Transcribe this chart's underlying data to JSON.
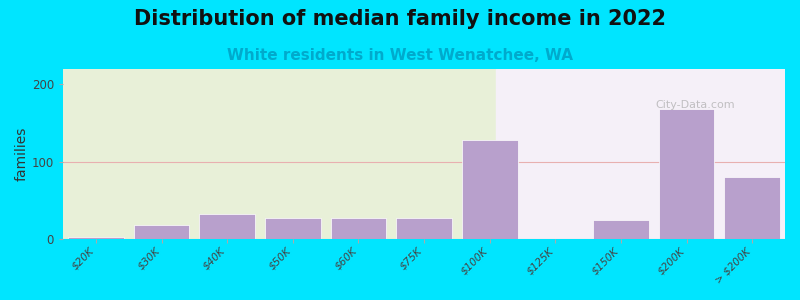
{
  "title": "Distribution of median family income in 2022",
  "subtitle": "White residents in West Wenatchee, WA",
  "ylabel": "families",
  "categories": [
    "$20K",
    "$30K",
    "$40K",
    "$50K",
    "$60K",
    "$75K",
    "$100K",
    "$125K",
    "$150K",
    "$200K",
    "> $200K"
  ],
  "values": [
    2,
    18,
    32,
    27,
    27,
    27,
    128,
    0,
    25,
    168,
    80
  ],
  "bar_color": "#b8a0cc",
  "background_color": "#00e5ff",
  "plot_bg_left": "#e8f0d8",
  "plot_bg_right": "#f5f0f8",
  "grid_color": "#e8b0b0",
  "title_fontsize": 15,
  "subtitle_fontsize": 11,
  "ylabel_fontsize": 10,
  "tick_fontsize": 7.5,
  "yticks": [
    0,
    100,
    200
  ],
  "ylim": [
    0,
    220
  ],
  "watermark": "City-Data.com"
}
